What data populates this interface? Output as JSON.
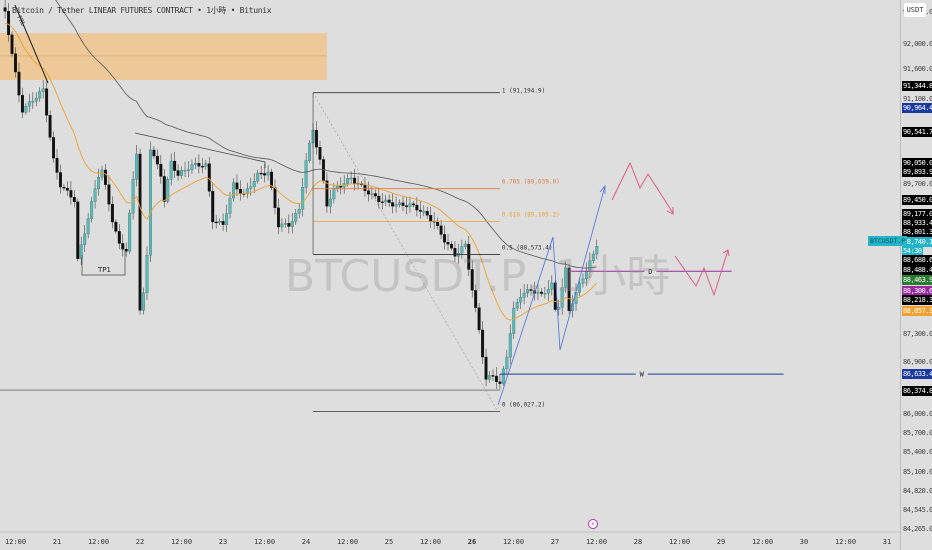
{
  "header": {
    "title": "Bitcoin / Tether LINEAR FUTURES CONTRACT • 1小時 • Bitunix",
    "watermark": "BTCUSDT.P, 1小時",
    "currency": "USDT"
  },
  "symbol_tag": {
    "label": "BTCUSDT.P",
    "price": "88,740.1",
    "countdown": "54:30",
    "color": "#26b5c8"
  },
  "colors": {
    "up": "#5fb8b8",
    "down": "#111111",
    "ema_fast": "#f0a030",
    "ema_slow": "#555555",
    "zone": "#f2c080",
    "fib_705": "#e07a40",
    "fib_618": "#f0a030",
    "w_line": "#1a3a9a",
    "d_line": "#9a2aa0",
    "pink": "#e0507a",
    "blue": "#4a70e0"
  },
  "time_axis": [
    "12:00",
    "21",
    "12:00",
    "22",
    "12:00",
    "23",
    "12:00",
    "24",
    "12:00",
    "25",
    "12:00",
    "26",
    "12:00",
    "27",
    "12:00",
    "28",
    "12:00",
    "29",
    "12:00",
    "30",
    "12:00",
    "31"
  ],
  "price_axis": [
    {
      "v": "92,400.0"
    },
    {
      "v": "92,000.0"
    },
    {
      "v": "91,600.0"
    },
    {
      "v": "91,344.8",
      "bg": "#000"
    },
    {
      "v": "91,100.0"
    },
    {
      "v": "90,964.4",
      "bg": "#1a3aa0"
    },
    {
      "v": "90,541.7",
      "bg": "#000"
    },
    {
      "v": "90,050.0",
      "bg": "#000"
    },
    {
      "v": "89,893.9",
      "bg": "#000"
    },
    {
      "v": "89,700.0"
    },
    {
      "v": "89,450.0",
      "bg": "#000"
    },
    {
      "v": "89,177.0",
      "bg": "#000"
    },
    {
      "v": "88,933.4",
      "bg": "#000"
    },
    {
      "v": "88,801.3",
      "bg": "#000"
    },
    {
      "v": "88,740.1",
      "bg": "#26b5c8"
    },
    {
      "v": "54:30",
      "bg": "#26b5c8"
    },
    {
      "v": "88,688.6",
      "bg": "#000"
    },
    {
      "v": "88,488.4",
      "bg": "#000"
    },
    {
      "v": "88,463.9",
      "bg": "#2a7a30"
    },
    {
      "v": "88,300.6",
      "bg": "#9a2aa0"
    },
    {
      "v": "88,218.3",
      "bg": "#000"
    },
    {
      "v": "88,057.3",
      "bg": "#f0a030"
    },
    {
      "v": "87,300.0"
    },
    {
      "v": "86,900.0"
    },
    {
      "v": "86,633.4",
      "bg": "#1a3aa0"
    },
    {
      "v": "86,374.8",
      "bg": "#000"
    },
    {
      "v": "86,000.0"
    },
    {
      "v": "85,700.0"
    },
    {
      "v": "85,400.0"
    },
    {
      "v": "85,100.0"
    },
    {
      "v": "84,820.0"
    },
    {
      "v": "84,545.0"
    },
    {
      "v": "84,265.0"
    }
  ],
  "chart_data": {
    "type": "candlestick",
    "interval": "1小時",
    "price_path": [
      [
        "20 09",
        92500
      ],
      [
        "20 13",
        91160
      ],
      [
        "20 14",
        90910
      ],
      [
        "20 20",
        91240
      ],
      [
        "20 23",
        90100
      ],
      [
        "21 01",
        89700
      ],
      [
        "21 05",
        89455
      ],
      [
        "21 06",
        88480
      ],
      [
        "21 08",
        88935
      ],
      [
        "21 12",
        89860
      ],
      [
        "21 13",
        89940
      ],
      [
        "21 16",
        89130
      ],
      [
        "21 18",
        88725
      ],
      [
        "21 20",
        88645
      ],
      [
        "21 22",
        89780
      ],
      [
        "21 23",
        90235
      ],
      [
        "22 00",
        87670
      ],
      [
        "22 01",
        87915
      ],
      [
        "22 02",
        88565
      ],
      [
        "22 03",
        90300
      ],
      [
        "22 06",
        89860
      ],
      [
        "22 07",
        89455
      ],
      [
        "22 09",
        90070
      ],
      [
        "22 11",
        89860
      ],
      [
        "22 15",
        90020
      ],
      [
        "22 19",
        90020
      ],
      [
        "22 21",
        89130
      ],
      [
        "23 00",
        89050
      ],
      [
        "23 03",
        89700
      ],
      [
        "23 06",
        89535
      ],
      [
        "23 10",
        89860
      ],
      [
        "23 13",
        89910
      ],
      [
        "23 16",
        89050
      ],
      [
        "23 19",
        89050
      ],
      [
        "23 22",
        89290
      ],
      [
        "24 00",
        90100
      ],
      [
        "24 02",
        90590
      ],
      [
        "24 04",
        90100
      ],
      [
        "24 06",
        89375
      ],
      [
        "24 08",
        89620
      ],
      [
        "24 13",
        89810
      ],
      [
        "24 17",
        89620
      ],
      [
        "24 21",
        89455
      ],
      [
        "25 02",
        89375
      ],
      [
        "25 06",
        89375
      ],
      [
        "25 09",
        89290
      ],
      [
        "25 13",
        89100
      ],
      [
        "25 16",
        88805
      ],
      [
        "25 19",
        88565
      ],
      [
        "25 22",
        88725
      ],
      [
        "26 00",
        88000
      ],
      [
        "26 02",
        87350
      ],
      [
        "26 04",
        86540
      ],
      [
        "26 06",
        86620
      ],
      [
        "26 08",
        86455
      ],
      [
        "26 10",
        86940
      ],
      [
        "26 12",
        87670
      ],
      [
        "26 14",
        87915
      ],
      [
        "26 17",
        88000
      ],
      [
        "26 20",
        87915
      ],
      [
        "26 23",
        88080
      ],
      [
        "27 00",
        87670
      ],
      [
        "27 01",
        87750
      ],
      [
        "27 03",
        88320
      ],
      [
        "27 04",
        87670
      ],
      [
        "27 07",
        88080
      ],
      [
        "27 09",
        88320
      ],
      [
        "27 11",
        88565
      ],
      [
        "27 12",
        88740
      ]
    ],
    "supply_zone": {
      "from": "20 00",
      "to": "24 06",
      "top": 92160,
      "bottom": 91400,
      "mid": 91790
    },
    "fib": {
      "from": "24 02",
      "to": "26 08",
      "levels": [
        {
          "label": "1 (91,194.9)",
          "price": 91194.9
        },
        {
          "label": "0.705 (89,639.0)",
          "price": 89639.0
        },
        {
          "label": "0.618 (89,105.2)",
          "price": 89105.2
        },
        {
          "label": "0.5 (88,573.4)",
          "price": 88573.4
        },
        {
          "label": "0 (86,027.2)",
          "price": 86027.2
        }
      ]
    },
    "hlines": [
      {
        "label": "W",
        "price": 86633.4,
        "from": "26 08",
        "to": "29 18"
      },
      {
        "label": "D",
        "price": 88300.6,
        "from": "27 04",
        "to": "29 03"
      }
    ],
    "annotations": {
      "tp1": "TP1",
      "frl": "FRL"
    }
  }
}
